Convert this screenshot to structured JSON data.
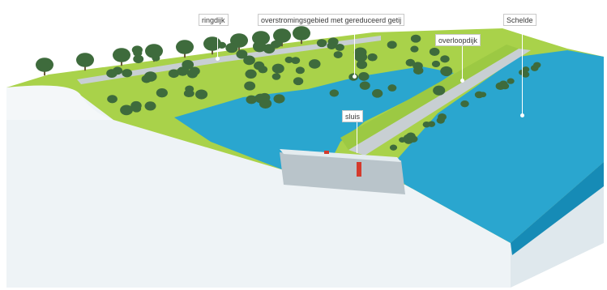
{
  "labels": {
    "ringdijk": "ringdijk",
    "flood_area": "overstromingsgebied met gereduceerd getij",
    "overflow_dike": "overloopdijk",
    "scheldt": "Schelde",
    "sluice": "sluis"
  },
  "colors": {
    "water": "#2aa6cf",
    "grass": "#a9d24a",
    "trees": "#3e6b3c",
    "soil": "#e6eef2",
    "dike_road": "#c8cfd3"
  }
}
